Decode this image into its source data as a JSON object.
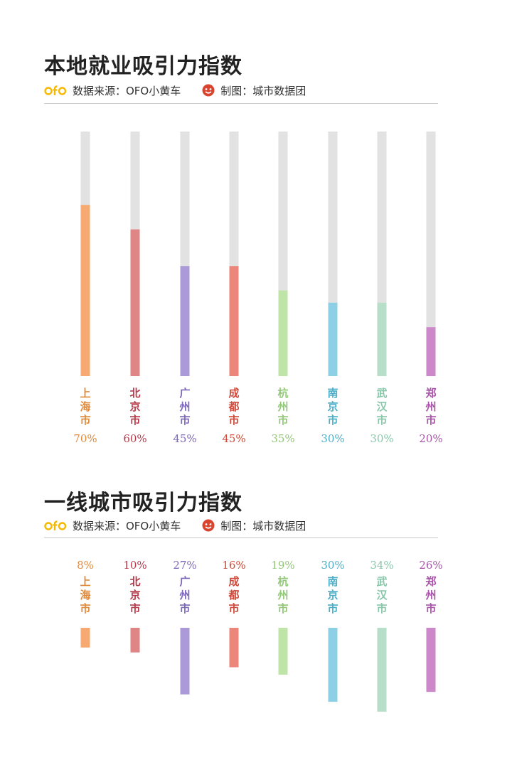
{
  "charts": [
    {
      "title": "本地就业吸引力指数",
      "source_label": "数据来源：OFO小黄车",
      "maker_label": "制图：城市数据团"
    },
    {
      "title": "一线城市吸引力指数",
      "source_label": "数据来源：OFO小黄车",
      "maker_label": "制图：城市数据团"
    }
  ],
  "logo_text": "ofo",
  "colors": {
    "track": "#e2e2e2",
    "rule": "#c8c8c8",
    "logo": "#f5b800",
    "maker_icon": "#d9442f"
  },
  "chart_data": [
    {
      "type": "bar",
      "title": "本地就业吸引力指数",
      "categories": [
        "上海市",
        "北京市",
        "广州市",
        "成都市",
        "杭州市",
        "南京市",
        "武汉市",
        "郑州市"
      ],
      "values": [
        70,
        60,
        45,
        45,
        35,
        30,
        30,
        20
      ],
      "labels": [
        "70%",
        "60%",
        "45%",
        "45%",
        "35%",
        "30%",
        "30%",
        "20%"
      ],
      "colors": [
        "#f6aa72",
        "#df8585",
        "#ac9ad8",
        "#ec857a",
        "#bfe4a8",
        "#8dd0e6",
        "#b7dec9",
        "#cc88c8"
      ],
      "label_colors": [
        "#e08a3c",
        "#b63a4a",
        "#7d68ba",
        "#cf4a3a",
        "#93c779",
        "#4aaec8",
        "#89c7aa",
        "#a855a8"
      ],
      "ylim": [
        0,
        100
      ],
      "orientation": "vertical-up"
    },
    {
      "type": "bar",
      "title": "一线城市吸引力指数",
      "categories": [
        "上海市",
        "北京市",
        "广州市",
        "成都市",
        "杭州市",
        "南京市",
        "武汉市",
        "郑州市"
      ],
      "values": [
        8,
        10,
        27,
        16,
        19,
        30,
        34,
        26
      ],
      "labels": [
        "8%",
        "10%",
        "27%",
        "16%",
        "19%",
        "30%",
        "34%",
        "26%"
      ],
      "colors": [
        "#f6aa72",
        "#df8585",
        "#ac9ad8",
        "#ec857a",
        "#bfe4a8",
        "#8dd0e6",
        "#b7dec9",
        "#cc88c8"
      ],
      "label_colors": [
        "#e08a3c",
        "#b63a4a",
        "#7d68ba",
        "#cf4a3a",
        "#93c779",
        "#4aaec8",
        "#89c7aa",
        "#a855a8"
      ],
      "orientation": "vertical-down"
    }
  ]
}
